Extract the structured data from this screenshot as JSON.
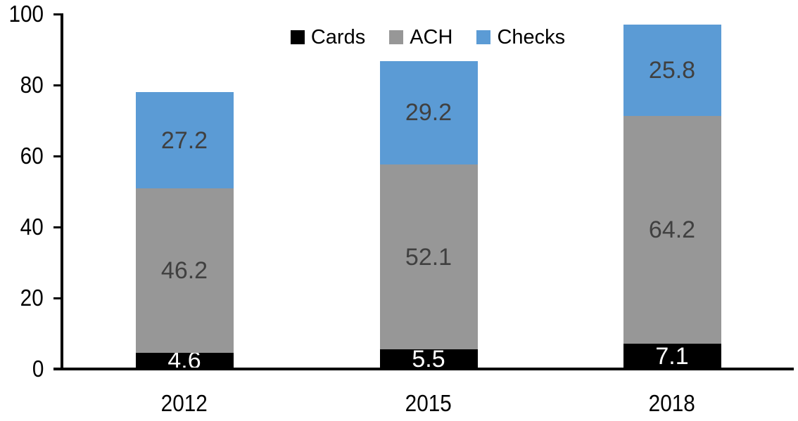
{
  "chart_data": {
    "type": "bar",
    "stacked": true,
    "title": "",
    "categories": [
      "2012",
      "2015",
      "2018"
    ],
    "series": [
      {
        "name": "Cards",
        "color": "#000000",
        "label_color": "#ffffff",
        "values": [
          4.6,
          5.5,
          7.1
        ]
      },
      {
        "name": "ACH",
        "color": "#979797",
        "label_color": "#404040",
        "values": [
          46.2,
          52.1,
          64.2
        ]
      },
      {
        "name": "Checks",
        "color": "#5b9bd5",
        "label_color": "#404040",
        "values": [
          27.2,
          29.2,
          25.8
        ]
      }
    ],
    "totals": [
      78.0,
      86.8,
      97.1
    ],
    "y_axis": {
      "min": 0,
      "max": 100,
      "tick_step": 20,
      "tick_labels": [
        "0",
        "20",
        "40",
        "60",
        "80",
        "100"
      ]
    },
    "x_axis": {
      "tick_labels": [
        "2012",
        "2015",
        "2018"
      ]
    },
    "legend": {
      "position": "top",
      "entries": [
        "Cards",
        "ACH",
        "Checks"
      ]
    },
    "grid": false,
    "data_labels": true,
    "colors": {
      "axis": "#000000",
      "background": "#ffffff",
      "data_label_dark": "#404040",
      "data_label_light": "#ffffff"
    }
  }
}
